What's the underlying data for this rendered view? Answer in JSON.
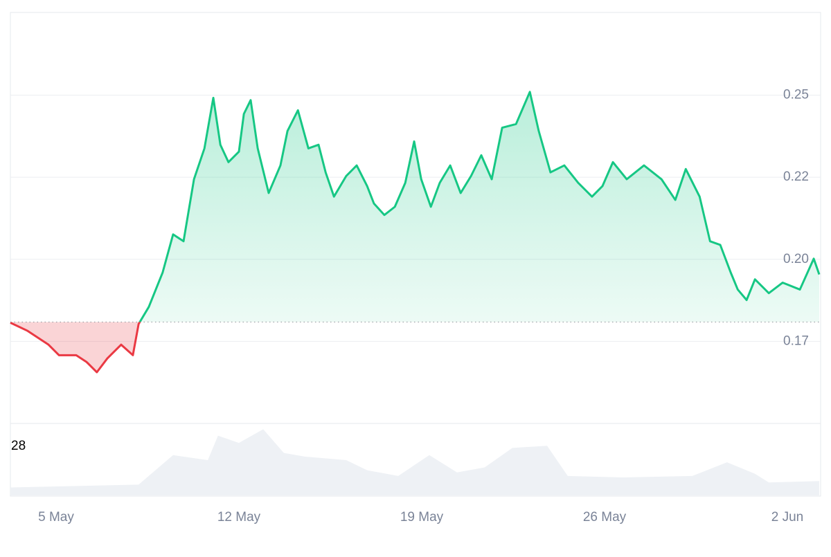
{
  "chart_data": {
    "type": "line",
    "x": [
      3.25,
      3.91,
      4.71,
      5.11,
      5.77,
      6.17,
      6.56,
      6.96,
      7.49,
      7.94,
      8.16,
      8.55,
      9.08,
      9.48,
      9.88,
      10.28,
      10.68,
      11.02,
      11.29,
      11.6,
      12.0,
      12.19,
      12.45,
      12.72,
      13.14,
      13.59,
      13.86,
      14.26,
      14.66,
      15.05,
      15.32,
      15.64,
      16.11,
      16.51,
      16.91,
      17.17,
      17.57,
      17.97,
      18.37,
      18.71,
      18.98,
      19.35,
      19.69,
      20.09,
      20.49,
      20.89,
      21.28,
      21.68,
      22.08,
      22.61,
      23.14,
      23.48,
      23.93,
      24.46,
      24.99,
      25.52,
      25.92,
      26.32,
      26.85,
      27.51,
      28.18,
      28.71,
      29.11,
      29.64,
      30.04,
      30.43,
      30.83,
      31.1,
      31.44,
      31.76,
      32.29,
      32.82,
      33.48,
      34.01,
      34.22
    ],
    "series": [
      {
        "color": "#16c784",
        "negative_color": "#ea3943",
        "values": [
          0.1807,
          0.1782,
          0.174,
          0.1708,
          0.1708,
          0.1687,
          0.1656,
          0.1698,
          0.174,
          0.1708,
          0.1803,
          0.1855,
          0.196,
          0.2076,
          0.2055,
          0.2244,
          0.2338,
          0.2492,
          0.2349,
          0.2296,
          0.2328,
          0.2443,
          0.2485,
          0.2338,
          0.2202,
          0.2286,
          0.2391,
          0.2454,
          0.2338,
          0.2349,
          0.2265,
          0.2191,
          0.2254,
          0.2286,
          0.2223,
          0.217,
          0.2135,
          0.216,
          0.2233,
          0.2359,
          0.2244,
          0.216,
          0.2233,
          0.2286,
          0.2202,
          0.2254,
          0.2317,
          0.2244,
          0.2401,
          0.2412,
          0.251,
          0.2391,
          0.2265,
          0.2286,
          0.2233,
          0.2191,
          0.2223,
          0.2296,
          0.2244,
          0.2286,
          0.2244,
          0.2181,
          0.2275,
          0.2191,
          0.2055,
          0.2044,
          0.196,
          0.1908,
          0.1876,
          0.1939,
          0.1897,
          0.1929,
          0.1908,
          0.2002,
          0.1954
        ]
      }
    ],
    "baseline": 0.1809,
    "xlim": [
      3.25,
      34.22
    ],
    "xticks": [
      {
        "value": 5,
        "label": "5 May"
      },
      {
        "value": 12,
        "label": "12 May"
      },
      {
        "value": 19,
        "label": "19 May"
      },
      {
        "value": 26,
        "label": "26 May"
      },
      {
        "value": 33,
        "label": "2 Jun"
      }
    ],
    "ylim": [
      0.15,
      0.2752
    ],
    "yticks": [
      0.25,
      {
        "value": 0.225,
        "label": "0.22"
      },
      {
        "value": 0.2,
        "label": "0.20"
      },
      {
        "value": 0.175,
        "label": "0.17"
      }
    ],
    "grid": true,
    "volume_label": "28",
    "volume": {
      "color": "#eef1f5",
      "ylim": [
        0,
        100
      ],
      "x": [
        3.25,
        8.16,
        9.48,
        10.81,
        11.2,
        12.0,
        12.93,
        13.72,
        14.52,
        16.11,
        16.91,
        18.1,
        19.29,
        20.35,
        21.41,
        22.47,
        23.8,
        24.59,
        26.71,
        29.36,
        30.69,
        31.76,
        32.29,
        34.22
      ],
      "values": [
        11,
        15,
        56,
        49,
        83,
        73,
        92,
        59,
        54,
        49,
        35,
        27,
        56,
        32,
        39,
        66,
        69,
        27,
        25,
        27,
        46,
        30,
        18,
        20
      ]
    }
  }
}
